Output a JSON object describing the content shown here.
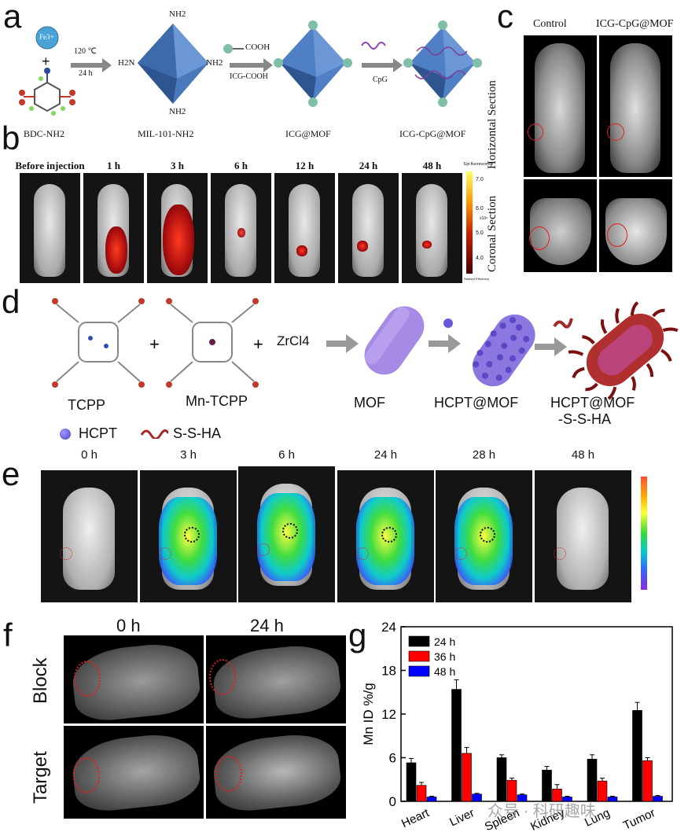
{
  "panels": {
    "a": {
      "letter": "a",
      "fe_label": "Fe3+",
      "plus": "+",
      "cond_temp": "120 ℃",
      "cond_time": "24 h",
      "nh2": "NH2",
      "h2n": "H2N",
      "cooh_label": "COOH",
      "icg_cooh": "ICG-COOH",
      "cpg": "CpG",
      "names": [
        "BDC-NH2",
        "MIL-101-NH2",
        "ICG@MOF",
        "ICG-CpG@MOF"
      ]
    },
    "b": {
      "letter": "b",
      "times": [
        "Before injection",
        "1 h",
        "3 h",
        "6 h",
        "12 h",
        "24 h",
        "48 h"
      ],
      "scale_title": "Epi-fluorescence",
      "scale_ticks": [
        "7.0",
        "6.0",
        "5.0",
        "4.0"
      ],
      "scale_exp": "x10⁸",
      "scale_foot": "Radiant Efficiency"
    },
    "c": {
      "letter": "c",
      "cols": [
        "Control",
        "ICG-CpG@MOF"
      ],
      "rows": [
        "Horizontal Section",
        "Coronal Section"
      ]
    },
    "d": {
      "letter": "d",
      "names": [
        "TCPP",
        "Mn-TCPP",
        "MOF",
        "HCPT@MOF",
        "HCPT@MOF",
        "-S-S-HA"
      ],
      "zrcl": "ZrCl4",
      "plus": "+",
      "legend": [
        "HCPT",
        "S-S-HA"
      ]
    },
    "e": {
      "letter": "e",
      "times": [
        "0 h",
        "3 h",
        "6 h",
        "24 h",
        "28 h",
        "48 h"
      ]
    },
    "f": {
      "letter": "f",
      "cols": [
        "0 h",
        "24 h"
      ],
      "rows": [
        "Block",
        "Target"
      ]
    },
    "g": {
      "letter": "g"
    }
  },
  "watermark": "众号 · 科研趣味",
  "chart_data": {
    "type": "bar",
    "ylabel": "Mn ID %/g",
    "ylim": [
      0,
      24
    ],
    "yticks": [
      0,
      6,
      12,
      18,
      24
    ],
    "categories": [
      "Heart",
      "Liver",
      "Spleen",
      "Kidney",
      "Lung",
      "Tumor"
    ],
    "series": [
      {
        "name": "24 h",
        "color": "#000000",
        "values": [
          5.3,
          15.4,
          6.0,
          4.3,
          5.8,
          12.5
        ],
        "errors": [
          0.6,
          1.3,
          0.4,
          0.5,
          0.6,
          1.1
        ]
      },
      {
        "name": "36 h",
        "color": "#ff0000",
        "values": [
          2.2,
          6.6,
          2.9,
          1.7,
          2.8,
          5.6
        ],
        "errors": [
          0.4,
          0.8,
          0.3,
          0.6,
          0.4,
          0.4
        ]
      },
      {
        "name": "48 h",
        "color": "#0000ff",
        "values": [
          0.6,
          1.0,
          0.9,
          0.6,
          0.6,
          0.7
        ],
        "errors": [
          0.1,
          0.1,
          0.1,
          0.1,
          0.1,
          0.1
        ]
      }
    ],
    "legend_position": "top-left",
    "grid": false
  }
}
